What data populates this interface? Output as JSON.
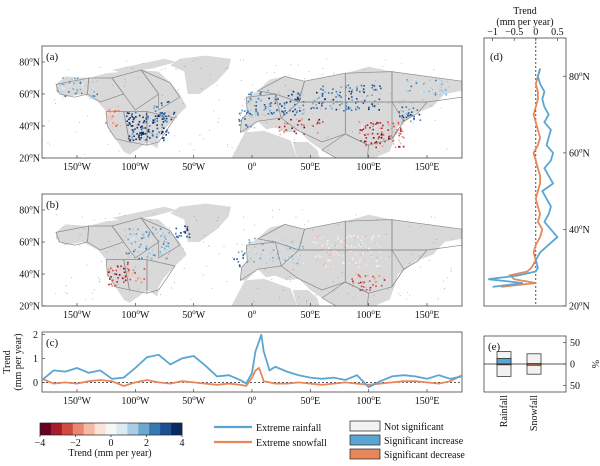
{
  "colors": {
    "rainfall": "#5aa6d3",
    "snowfall": "#e8875a",
    "not_significant": "#f2f2f2",
    "sig_increase": "#5aa6d3",
    "sig_decrease": "#e8875a",
    "land": "#d9d9d9",
    "region_line": "#8a8a8a",
    "colormap": [
      "#67001f",
      "#a51d2b",
      "#d04a42",
      "#ea8672",
      "#f7b9a4",
      "#fbe3d7",
      "#f7f7f7",
      "#dceaf3",
      "#a8cde4",
      "#6aa8cf",
      "#3478b4",
      "#1d4f91",
      "#0b2a63"
    ]
  },
  "panels": {
    "a": "(a)",
    "b": "(b)",
    "c": "(c)",
    "d": "(d)",
    "e": "(e)"
  },
  "map_axes": {
    "lon_ticks": [
      {
        "lon": -150,
        "deg": "150",
        "h": "W"
      },
      {
        "lon": -100,
        "deg": "100",
        "h": "W"
      },
      {
        "lon": -50,
        "deg": "50",
        "h": "W"
      },
      {
        "lon": 0,
        "deg": "0",
        "h": ""
      },
      {
        "lon": 50,
        "deg": "50",
        "h": "E"
      },
      {
        "lon": 100,
        "deg": "100",
        "h": "E"
      },
      {
        "lon": 150,
        "deg": "150",
        "h": "E"
      }
    ],
    "lat_ticks": [
      {
        "lat": 80,
        "deg": "80",
        "h": "N"
      },
      {
        "lat": 60,
        "deg": "60",
        "h": "N"
      },
      {
        "lat": 40,
        "deg": "40",
        "h": "N"
      },
      {
        "lat": 20,
        "deg": "20",
        "h": "N"
      }
    ]
  },
  "colorbar": {
    "ticks": [
      "-4",
      "-2",
      "0",
      "2",
      "4"
    ],
    "label": "Trend (mm per year)"
  },
  "legend": {
    "rainfall": "Extreme rainfall",
    "snowfall": "Extreme snowfall",
    "not_significant": "Not significant",
    "sig_increase": "Significant increase",
    "sig_decrease": "Significant decrease"
  },
  "chart_data": [
    {
      "panel": "c",
      "type": "line",
      "title": "",
      "xlabel": "",
      "ylabel": "Trend (mm per year)",
      "xlim": [
        -180,
        180
      ],
      "ylim": [
        -0.4,
        2.1
      ],
      "yticks": [
        0,
        1,
        2
      ],
      "x": [
        -180,
        -170,
        -160,
        -150,
        -140,
        -130,
        -120,
        -110,
        -100,
        -90,
        -80,
        -70,
        -60,
        -50,
        -40,
        -30,
        -20,
        -10,
        -5,
        0,
        3,
        6,
        8,
        10,
        15,
        20,
        30,
        40,
        50,
        60,
        70,
        80,
        90,
        100,
        110,
        120,
        130,
        140,
        150,
        160,
        170,
        180
      ],
      "series": [
        {
          "name": "Extreme rainfall",
          "values": [
            0.1,
            0.5,
            0.45,
            0.6,
            0.4,
            0.5,
            0.15,
            0.2,
            0.6,
            1.05,
            1.15,
            0.75,
            1.0,
            1.1,
            0.7,
            0.25,
            0.3,
            0.1,
            -0.05,
            0.4,
            1.3,
            1.7,
            2.0,
            1.3,
            0.5,
            0.65,
            0.45,
            0.3,
            0.2,
            0.15,
            0.2,
            0.1,
            0.3,
            -0.2,
            0.05,
            0.25,
            0.3,
            0.25,
            0.15,
            0.3,
            0.15,
            0.25
          ]
        },
        {
          "name": "Extreme snowfall",
          "values": [
            0.15,
            -0.05,
            0.0,
            -0.05,
            0.05,
            0.1,
            0.05,
            -0.15,
            0.0,
            0.1,
            0.0,
            -0.05,
            0.05,
            0.0,
            -0.05,
            -0.1,
            -0.05,
            -0.1,
            -0.15,
            0.2,
            0.5,
            0.6,
            0.35,
            0.05,
            0.0,
            -0.05,
            -0.05,
            0.0,
            -0.05,
            -0.1,
            -0.05,
            0.0,
            -0.05,
            -0.1,
            -0.05,
            0.0,
            0.05,
            0.05,
            0.0,
            -0.05,
            0.05,
            0.3
          ]
        }
      ]
    },
    {
      "panel": "d",
      "type": "line",
      "title": "",
      "xlabel": "Trend (mm per year)",
      "ylabel": "",
      "xlim": [
        -1.2,
        0.7
      ],
      "ylim": [
        20,
        90
      ],
      "xticks": [
        "-1",
        "-0.5",
        "0",
        "0.5"
      ],
      "lat_ticks": [
        {
          "lat": 80,
          "deg": "80",
          "h": "N"
        },
        {
          "lat": 60,
          "deg": "60",
          "h": "N"
        },
        {
          "lat": 40,
          "deg": "40",
          "h": "N"
        },
        {
          "lat": 20,
          "deg": "20",
          "h": "N"
        }
      ],
      "y": [
        25,
        26,
        27,
        28,
        29,
        30,
        32,
        34,
        36,
        38,
        40,
        42,
        44,
        46,
        48,
        50,
        52,
        54,
        56,
        58,
        60,
        62,
        64,
        66,
        68,
        70,
        72,
        74,
        76,
        78,
        80,
        82
      ],
      "series": [
        {
          "name": "Extreme rainfall",
          "values": [
            -1.0,
            -0.3,
            -1.1,
            -0.4,
            0.0,
            0.05,
            0.0,
            0.1,
            0.3,
            0.5,
            0.35,
            0.2,
            0.3,
            0.35,
            0.25,
            0.15,
            0.4,
            0.3,
            0.2,
            0.35,
            0.4,
            0.25,
            0.3,
            0.35,
            0.2,
            0.3,
            0.2,
            0.15,
            0.2,
            0.1,
            0.05,
            0.1
          ]
        },
        {
          "name": "Extreme snowfall",
          "values": [
            -0.8,
            0.0,
            -0.5,
            -0.6,
            -0.2,
            -0.1,
            0.0,
            -0.05,
            0.0,
            0.1,
            0.15,
            0.05,
            0.1,
            0.05,
            0.0,
            0.05,
            0.1,
            0.1,
            0.05,
            0.0,
            -0.05,
            0.05,
            0.1,
            0.05,
            0.0,
            -0.05,
            0.0,
            0.05,
            0.05,
            0.0,
            0.05,
            0.1
          ]
        }
      ]
    },
    {
      "panel": "e",
      "type": "bar",
      "title": "",
      "ylabel": "%",
      "categories": [
        "Rainfall",
        "Snowfall"
      ],
      "ylim": [
        -60,
        60
      ],
      "yticks": [
        "50",
        "0",
        "50"
      ],
      "series": [
        {
          "name": "Not significant",
          "values": [
            45,
            35
          ]
        },
        {
          "name": "Significant increase",
          "values": [
            13,
            1
          ]
        },
        {
          "name": "Significant decrease",
          "values": [
            2,
            3
          ]
        }
      ]
    }
  ]
}
